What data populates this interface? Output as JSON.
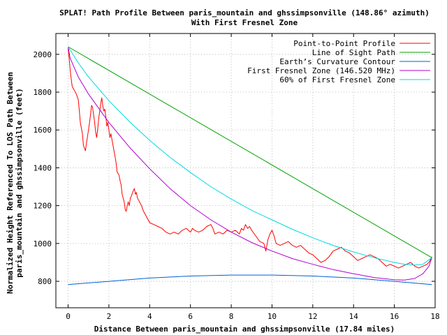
{
  "chart_data": {
    "type": "line",
    "title_line1": "SPLAT! Path Profile Between paris_mountain and ghssimpsonville (148.86° azimuth)",
    "title_line2": "With First Fresnel Zone",
    "xlabel": "Distance Between paris_mountain and ghssimpsonville (17.84 miles)",
    "ylabel_line1": "Normalized Height Referenced To LOS Path Between",
    "ylabel_line2": "paris_mountain and ghssimpsonville (feet)",
    "xlim": [
      -0.6,
      18
    ],
    "ylim": [
      660,
      2110
    ],
    "x_ticks": [
      0,
      2,
      4,
      6,
      8,
      10,
      12,
      14,
      16,
      18
    ],
    "y_ticks": [
      800,
      1000,
      1200,
      1400,
      1600,
      1800,
      2000
    ],
    "grid": true,
    "legend_position": "top-right",
    "series": [
      {
        "name": "Point-to-Point Profile",
        "color": "#ff0000",
        "points": [
          [
            0,
            2030
          ],
          [
            0.05,
            1980
          ],
          [
            0.1,
            1920
          ],
          [
            0.15,
            1870
          ],
          [
            0.2,
            1830
          ],
          [
            0.3,
            1810
          ],
          [
            0.4,
            1790
          ],
          [
            0.5,
            1760
          ],
          [
            0.55,
            1700
          ],
          [
            0.6,
            1640
          ],
          [
            0.7,
            1580
          ],
          [
            0.75,
            1520
          ],
          [
            0.85,
            1490
          ],
          [
            0.9,
            1530
          ],
          [
            1.0,
            1600
          ],
          [
            1.05,
            1640
          ],
          [
            1.1,
            1680
          ],
          [
            1.15,
            1730
          ],
          [
            1.2,
            1720
          ],
          [
            1.25,
            1680
          ],
          [
            1.3,
            1640
          ],
          [
            1.35,
            1590
          ],
          [
            1.4,
            1560
          ],
          [
            1.45,
            1600
          ],
          [
            1.5,
            1660
          ],
          [
            1.55,
            1700
          ],
          [
            1.6,
            1740
          ],
          [
            1.65,
            1770
          ],
          [
            1.7,
            1730
          ],
          [
            1.75,
            1700
          ],
          [
            1.8,
            1710
          ],
          [
            1.85,
            1670
          ],
          [
            1.9,
            1620
          ],
          [
            1.95,
            1640
          ],
          [
            2.0,
            1600
          ],
          [
            2.05,
            1560
          ],
          [
            2.1,
            1580
          ],
          [
            2.2,
            1520
          ],
          [
            2.3,
            1460
          ],
          [
            2.35,
            1430
          ],
          [
            2.4,
            1380
          ],
          [
            2.5,
            1360
          ],
          [
            2.55,
            1330
          ],
          [
            2.6,
            1310
          ],
          [
            2.65,
            1260
          ],
          [
            2.7,
            1240
          ],
          [
            2.75,
            1220
          ],
          [
            2.8,
            1180
          ],
          [
            2.85,
            1170
          ],
          [
            2.9,
            1200
          ],
          [
            2.95,
            1220
          ],
          [
            3.0,
            1200
          ],
          [
            3.05,
            1240
          ],
          [
            3.1,
            1250
          ],
          [
            3.2,
            1280
          ],
          [
            3.25,
            1290
          ],
          [
            3.3,
            1260
          ],
          [
            3.35,
            1270
          ],
          [
            3.4,
            1240
          ],
          [
            3.5,
            1220
          ],
          [
            3.6,
            1200
          ],
          [
            3.7,
            1170
          ],
          [
            3.8,
            1150
          ],
          [
            3.9,
            1130
          ],
          [
            4.0,
            1110
          ],
          [
            4.2,
            1100
          ],
          [
            4.4,
            1090
          ],
          [
            4.6,
            1080
          ],
          [
            4.8,
            1060
          ],
          [
            5.0,
            1050
          ],
          [
            5.2,
            1060
          ],
          [
            5.4,
            1050
          ],
          [
            5.6,
            1070
          ],
          [
            5.8,
            1080
          ],
          [
            6.0,
            1060
          ],
          [
            6.1,
            1080
          ],
          [
            6.2,
            1070
          ],
          [
            6.4,
            1060
          ],
          [
            6.6,
            1070
          ],
          [
            6.8,
            1090
          ],
          [
            7.0,
            1100
          ],
          [
            7.1,
            1080
          ],
          [
            7.2,
            1050
          ],
          [
            7.4,
            1060
          ],
          [
            7.6,
            1050
          ],
          [
            7.8,
            1070
          ],
          [
            8.0,
            1060
          ],
          [
            8.2,
            1070
          ],
          [
            8.4,
            1050
          ],
          [
            8.5,
            1080
          ],
          [
            8.6,
            1070
          ],
          [
            8.7,
            1100
          ],
          [
            8.8,
            1080
          ],
          [
            8.9,
            1090
          ],
          [
            9.0,
            1070
          ],
          [
            9.2,
            1040
          ],
          [
            9.4,
            1010
          ],
          [
            9.6,
            1000
          ],
          [
            9.7,
            960
          ],
          [
            9.8,
            1020
          ],
          [
            9.9,
            1050
          ],
          [
            10.0,
            1070
          ],
          [
            10.1,
            1040
          ],
          [
            10.2,
            1000
          ],
          [
            10.4,
            990
          ],
          [
            10.6,
            1000
          ],
          [
            10.8,
            1010
          ],
          [
            11.0,
            990
          ],
          [
            11.2,
            980
          ],
          [
            11.4,
            990
          ],
          [
            11.6,
            970
          ],
          [
            11.8,
            950
          ],
          [
            12.0,
            940
          ],
          [
            12.2,
            920
          ],
          [
            12.4,
            900
          ],
          [
            12.6,
            910
          ],
          [
            12.8,
            930
          ],
          [
            13.0,
            960
          ],
          [
            13.2,
            970
          ],
          [
            13.4,
            980
          ],
          [
            13.6,
            960
          ],
          [
            13.8,
            950
          ],
          [
            14.0,
            930
          ],
          [
            14.2,
            910
          ],
          [
            14.4,
            920
          ],
          [
            14.6,
            930
          ],
          [
            14.8,
            940
          ],
          [
            15.0,
            930
          ],
          [
            15.2,
            920
          ],
          [
            15.4,
            900
          ],
          [
            15.6,
            880
          ],
          [
            15.8,
            890
          ],
          [
            16.0,
            880
          ],
          [
            16.2,
            870
          ],
          [
            16.4,
            880
          ],
          [
            16.6,
            890
          ],
          [
            16.8,
            900
          ],
          [
            17.0,
            880
          ],
          [
            17.2,
            870
          ],
          [
            17.4,
            880
          ],
          [
            17.6,
            890
          ],
          [
            17.7,
            900
          ],
          [
            17.8,
            920
          ],
          [
            17.84,
            930
          ]
        ]
      },
      {
        "name": "Line of Sight Path",
        "color": "#00a000",
        "points": [
          [
            0,
            2040
          ],
          [
            17.84,
            925
          ]
        ]
      },
      {
        "name": "Earth’s Curvature Contour",
        "color": "#0060d0",
        "points": [
          [
            0,
            783
          ],
          [
            2,
            800
          ],
          [
            4,
            817
          ],
          [
            6,
            828
          ],
          [
            8,
            833
          ],
          [
            10,
            833
          ],
          [
            12,
            828
          ],
          [
            14,
            817
          ],
          [
            16,
            800
          ],
          [
            17.84,
            783
          ]
        ]
      },
      {
        "name": "First Fresnel Zone (146.520 MHz)",
        "color": "#b000d0",
        "points": [
          [
            0,
            2040
          ],
          [
            0.1,
            1980
          ],
          [
            0.5,
            1880
          ],
          [
            1,
            1790
          ],
          [
            2,
            1640
          ],
          [
            3,
            1510
          ],
          [
            4,
            1395
          ],
          [
            5,
            1290
          ],
          [
            6,
            1200
          ],
          [
            7,
            1125
          ],
          [
            8,
            1060
          ],
          [
            9,
            1005
          ],
          [
            10,
            960
          ],
          [
            11,
            920
          ],
          [
            12,
            890
          ],
          [
            13,
            862
          ],
          [
            14,
            840
          ],
          [
            15,
            820
          ],
          [
            16,
            808
          ],
          [
            16.5,
            807
          ],
          [
            17,
            815
          ],
          [
            17.4,
            840
          ],
          [
            17.7,
            880
          ],
          [
            17.84,
            925
          ]
        ]
      },
      {
        "name": "60% of First Fresnel Zone",
        "color": "#00d8e0",
        "points": [
          [
            0,
            2040
          ],
          [
            0.5,
            1955
          ],
          [
            1,
            1880
          ],
          [
            2,
            1755
          ],
          [
            3,
            1645
          ],
          [
            4,
            1545
          ],
          [
            5,
            1455
          ],
          [
            6,
            1375
          ],
          [
            7,
            1300
          ],
          [
            8,
            1235
          ],
          [
            9,
            1175
          ],
          [
            10,
            1125
          ],
          [
            11,
            1075
          ],
          [
            12,
            1030
          ],
          [
            13,
            990
          ],
          [
            14,
            955
          ],
          [
            15,
            925
          ],
          [
            16,
            900
          ],
          [
            16.5,
            890
          ],
          [
            17,
            886
          ],
          [
            17.4,
            890
          ],
          [
            17.84,
            925
          ]
        ]
      }
    ]
  }
}
